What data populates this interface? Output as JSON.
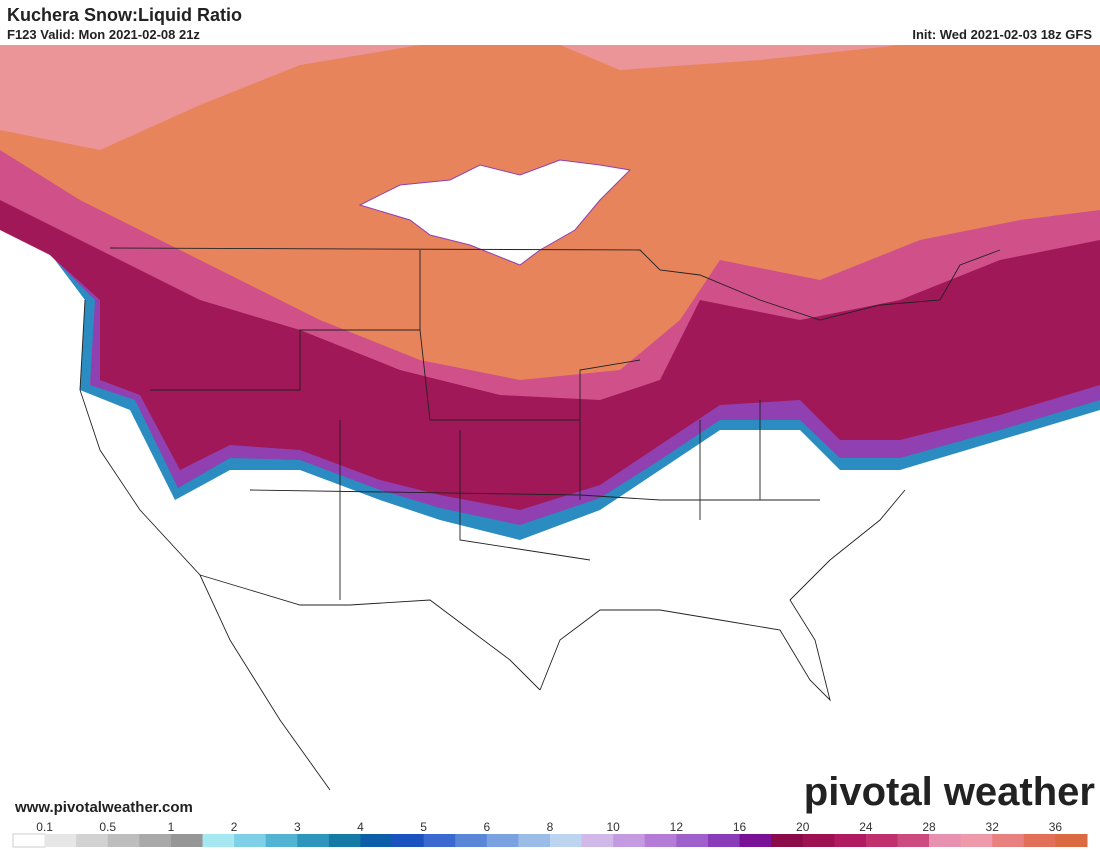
{
  "header": {
    "title": "Kuchera Snow:Liquid Ratio",
    "valid": "F123 Valid: Mon 2021-02-08 21z",
    "init": "Init: Wed 2021-02-03 18z GFS"
  },
  "footer": {
    "website": "www.pivotalweather.com",
    "logo": "pivotal weather"
  },
  "colorbar": {
    "labels": [
      0.1,
      0.5,
      1,
      2,
      3,
      4,
      5,
      6,
      8,
      10,
      12,
      16,
      20,
      24,
      28,
      32,
      36
    ],
    "colors": [
      "#ffffff",
      "#e6e6e6",
      "#d2d2d2",
      "#bebebe",
      "#a9a9a9",
      "#969696",
      "#a6e8f2",
      "#7dd0e6",
      "#52b4d2",
      "#2e96bc",
      "#167aa6",
      "#0c5ea8",
      "#1a52c0",
      "#3a6ad0",
      "#5a86d8",
      "#7aa2e0",
      "#9cbce8",
      "#bcd4f0",
      "#d0b8e8",
      "#c49ae0",
      "#b47cd6",
      "#a060cc",
      "#8a3cb8",
      "#7a1098",
      "#8a0a4a",
      "#9e1052",
      "#b01a60",
      "#c0306e",
      "#cc4a80",
      "#e890b0",
      "#ee9aaa",
      "#e88080",
      "#e27058",
      "#dc6a40"
    ]
  }
}
